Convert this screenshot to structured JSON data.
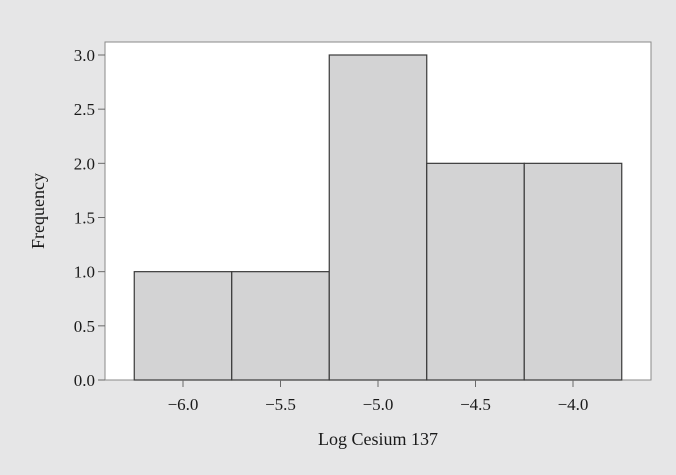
{
  "chart_data": {
    "type": "bar",
    "title": "",
    "xlabel": "Log Cesium 137",
    "ylabel": "Frequency",
    "bins": [
      {
        "start": -6.25,
        "end": -5.75,
        "count": 1
      },
      {
        "start": -5.75,
        "end": -5.25,
        "count": 1
      },
      {
        "start": -5.25,
        "end": -4.75,
        "count": 3
      },
      {
        "start": -4.75,
        "end": -4.25,
        "count": 2
      },
      {
        "start": -4.25,
        "end": -3.75,
        "count": 2
      }
    ],
    "xlim": [
      -6.4,
      -3.6
    ],
    "ylim": [
      0,
      3.12
    ],
    "xticks": [
      -6.0,
      -5.5,
      -5.0,
      -4.5,
      -4.0
    ],
    "xtick_labels": [
      "−6.0",
      "−5.5",
      "−5.0",
      "−4.5",
      "−4.0"
    ],
    "yticks": [
      0,
      0.5,
      1,
      1.5,
      2,
      2.5,
      3
    ],
    "ytick_labels": [
      "0.0",
      "0.5",
      "1.0",
      "1.5",
      "2.0",
      "2.5",
      "3.0"
    ],
    "grid": false,
    "legend": "none"
  },
  "colors": {
    "background": "#e6e6e7",
    "plot_area": "#ffffff",
    "bar_fill": "#d3d3d4",
    "bar_edge": "#3a3a3a",
    "axis": "#6a6a6a"
  }
}
